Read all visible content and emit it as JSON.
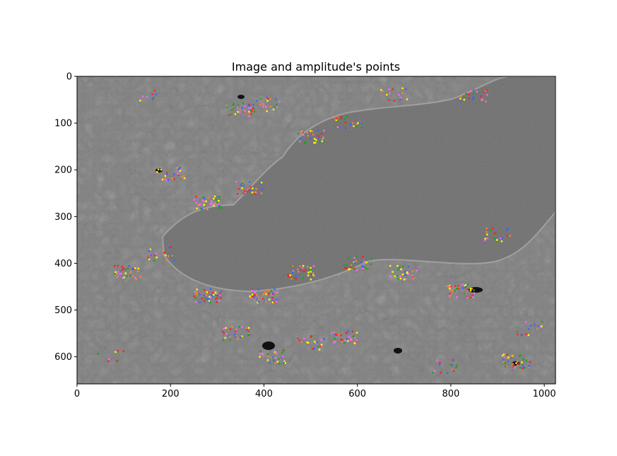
{
  "chart_data": {
    "type": "scatter",
    "title": "Image and amplitude's points",
    "xlabel": "",
    "ylabel": "",
    "xlim": [
      0,
      1024
    ],
    "ylim": [
      658,
      0
    ],
    "y_inverted": true,
    "grid": false,
    "x_ticks": [
      0,
      200,
      400,
      600,
      800,
      1000
    ],
    "y_ticks": [
      0,
      100,
      200,
      300,
      400,
      500,
      600
    ],
    "background": "grayscale micrograph image (metal microstructure)",
    "point_colors": [
      "#ff2020",
      "#ffff00",
      "#ff66ff",
      "#4060ff",
      "#20a020",
      "#ff8040"
    ],
    "clusters": [
      {
        "x": 350,
        "y": 70,
        "n": 40
      },
      {
        "x": 415,
        "y": 60,
        "n": 20
      },
      {
        "x": 150,
        "y": 45,
        "n": 8
      },
      {
        "x": 500,
        "y": 130,
        "n": 30
      },
      {
        "x": 580,
        "y": 100,
        "n": 25
      },
      {
        "x": 680,
        "y": 40,
        "n": 15
      },
      {
        "x": 850,
        "y": 40,
        "n": 25
      },
      {
        "x": 200,
        "y": 210,
        "n": 25
      },
      {
        "x": 280,
        "y": 270,
        "n": 40
      },
      {
        "x": 370,
        "y": 240,
        "n": 25
      },
      {
        "x": 110,
        "y": 420,
        "n": 35
      },
      {
        "x": 180,
        "y": 380,
        "n": 20
      },
      {
        "x": 280,
        "y": 470,
        "n": 50
      },
      {
        "x": 400,
        "y": 470,
        "n": 45
      },
      {
        "x": 480,
        "y": 420,
        "n": 40
      },
      {
        "x": 600,
        "y": 400,
        "n": 30
      },
      {
        "x": 700,
        "y": 420,
        "n": 30
      },
      {
        "x": 820,
        "y": 460,
        "n": 40
      },
      {
        "x": 900,
        "y": 340,
        "n": 20
      },
      {
        "x": 340,
        "y": 550,
        "n": 30
      },
      {
        "x": 420,
        "y": 600,
        "n": 30
      },
      {
        "x": 500,
        "y": 570,
        "n": 20
      },
      {
        "x": 575,
        "y": 560,
        "n": 35
      },
      {
        "x": 790,
        "y": 620,
        "n": 15
      },
      {
        "x": 940,
        "y": 610,
        "n": 40
      },
      {
        "x": 970,
        "y": 540,
        "n": 15
      },
      {
        "x": 70,
        "y": 600,
        "n": 8
      }
    ]
  }
}
